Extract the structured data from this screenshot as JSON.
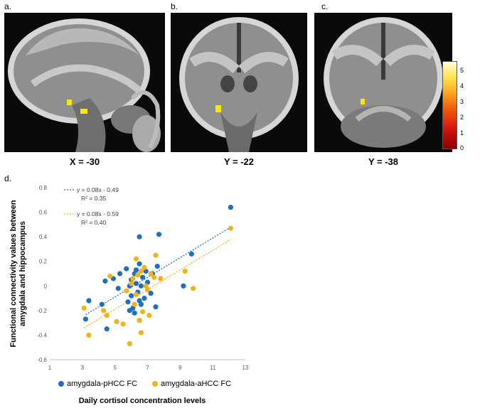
{
  "panels": [
    {
      "label": "a.",
      "coord": "X = -30"
    },
    {
      "label": "b.",
      "coord": "Y = -22"
    },
    {
      "label": "c.",
      "coord": "Y = -38"
    },
    {
      "label": "d."
    }
  ],
  "colorbar": {
    "ticks": [
      "5",
      "4",
      "3",
      "2",
      "1",
      "0"
    ],
    "colors": [
      "#8b0000",
      "#d41010",
      "#f05a0a",
      "#fca820",
      "#ffe24a",
      "#ffffd8"
    ]
  },
  "chart_data": {
    "type": "scatter",
    "xlabel": "Daily cortisol concentration levels",
    "ylabel_lines": [
      "Functional connectivity values between",
      "amygdala and hippocampus"
    ],
    "xlim": [
      1,
      13
    ],
    "ylim": [
      -0.6,
      0.8
    ],
    "xticks": [
      "1",
      "3",
      "5",
      "7",
      "9",
      "11",
      "13"
    ],
    "yticks": [
      "-0.6",
      "-0.4",
      "-0.2",
      "0",
      "0.2",
      "0.4",
      "0.6",
      "0.8"
    ],
    "grid": false,
    "legend_position": "bottom",
    "series": [
      {
        "name": "amygdala-pHCC FC",
        "color": "#1f6fbf",
        "equation": "y = 0.08x - 0.49",
        "r2": "R² = 0.35",
        "trend": {
          "slope": 0.08,
          "intercept": -0.49
        },
        "points": [
          [
            3.2,
            -0.27
          ],
          [
            3.4,
            -0.12
          ],
          [
            4.2,
            -0.15
          ],
          [
            4.4,
            0.04
          ],
          [
            4.5,
            -0.35
          ],
          [
            4.9,
            0.06
          ],
          [
            5.2,
            -0.02
          ],
          [
            5.3,
            0.1
          ],
          [
            5.7,
            0.14
          ],
          [
            5.8,
            -0.13
          ],
          [
            5.9,
            0.0
          ],
          [
            5.9,
            -0.2
          ],
          [
            6.0,
            -0.08
          ],
          [
            6.0,
            0.05
          ],
          [
            6.1,
            -0.18
          ],
          [
            6.2,
            0.1
          ],
          [
            6.2,
            -0.22
          ],
          [
            6.3,
            0.02
          ],
          [
            6.3,
            0.13
          ],
          [
            6.4,
            -0.05
          ],
          [
            6.5,
            0.18
          ],
          [
            6.5,
            -0.12
          ],
          [
            6.5,
            0.4
          ],
          [
            6.6,
            0.0
          ],
          [
            6.6,
            -0.15
          ],
          [
            6.7,
            0.07
          ],
          [
            6.8,
            -0.1
          ],
          [
            6.9,
            0.12
          ],
          [
            7.0,
            0.03
          ],
          [
            7.2,
            -0.06
          ],
          [
            7.3,
            0.1
          ],
          [
            7.5,
            -0.17
          ],
          [
            7.6,
            0.16
          ],
          [
            7.7,
            0.42
          ],
          [
            9.2,
            0.0
          ],
          [
            9.7,
            0.26
          ],
          [
            12.1,
            0.64
          ]
        ]
      },
      {
        "name": "amygdala-aHCC FC",
        "color": "#f2b21a",
        "equation": "y = 0.08x - 0.59",
        "r2": "R² = 0.40",
        "trend": {
          "slope": 0.08,
          "intercept": -0.59
        },
        "points": [
          [
            3.1,
            -0.18
          ],
          [
            3.4,
            -0.4
          ],
          [
            4.3,
            -0.2
          ],
          [
            4.5,
            -0.24
          ],
          [
            4.7,
            0.08
          ],
          [
            5.1,
            -0.29
          ],
          [
            5.5,
            -0.31
          ],
          [
            5.7,
            -0.04
          ],
          [
            5.9,
            -0.47
          ],
          [
            6.0,
            0.02
          ],
          [
            6.1,
            0.06
          ],
          [
            6.2,
            -0.15
          ],
          [
            6.3,
            -0.07
          ],
          [
            6.3,
            0.22
          ],
          [
            6.4,
            0.09
          ],
          [
            6.5,
            -0.28
          ],
          [
            6.6,
            -0.38
          ],
          [
            6.6,
            0.12
          ],
          [
            6.7,
            -0.21
          ],
          [
            6.8,
            0.15
          ],
          [
            6.9,
            0.0
          ],
          [
            7.0,
            -0.03
          ],
          [
            7.1,
            -0.24
          ],
          [
            7.2,
            0.1
          ],
          [
            7.4,
            0.07
          ],
          [
            7.5,
            0.25
          ],
          [
            7.8,
            0.06
          ],
          [
            9.3,
            0.12
          ],
          [
            9.8,
            -0.02
          ],
          [
            12.1,
            0.47
          ]
        ]
      }
    ]
  }
}
